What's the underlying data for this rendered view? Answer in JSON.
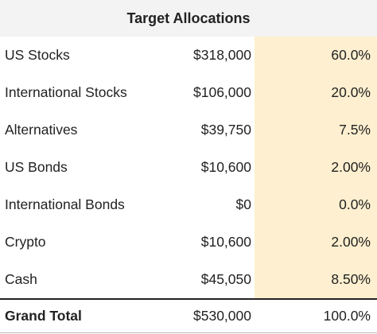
{
  "table": {
    "title": "Target Allocations",
    "rows": [
      [
        "US Stocks",
        "$318,000",
        "60.0%"
      ],
      [
        "International Stocks",
        "$106,000",
        "20.0%"
      ],
      [
        "Alternatives",
        "$39,750",
        "7.5%"
      ],
      [
        "US Bonds",
        "$10,600",
        "2.00%"
      ],
      [
        "International Bonds",
        "$0",
        "0.0%"
      ],
      [
        "Crypto",
        "$10,600",
        "2.00%"
      ],
      [
        "Cash",
        "$45,050",
        "8.50%"
      ]
    ],
    "total": [
      "Grand Total",
      "$530,000",
      "100.0%"
    ]
  }
}
